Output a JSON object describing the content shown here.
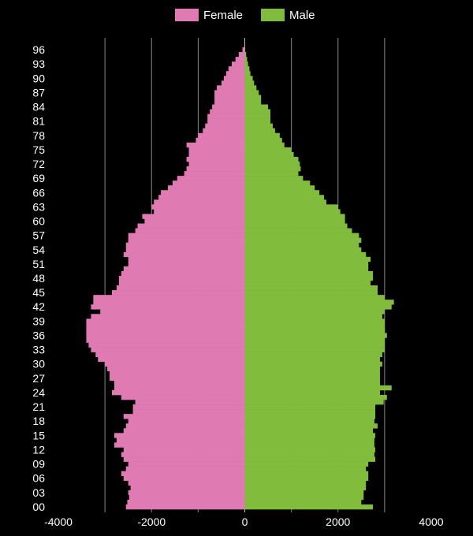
{
  "chart_data": {
    "type": "bar",
    "orientation": "horizontal",
    "layout": "population-pyramid",
    "legend_position": "top",
    "grid": true,
    "xlim": [
      -4000,
      4000
    ],
    "x_ticks": [
      -4000,
      -2000,
      0,
      2000,
      4000
    ],
    "y_tick_labels": [
      "96",
      "93",
      "90",
      "87",
      "84",
      "81",
      "78",
      "75",
      "72",
      "69",
      "66",
      "63",
      "60",
      "57",
      "54",
      "51",
      "48",
      "45",
      "42",
      "39",
      "36",
      "33",
      "30",
      "27",
      "24",
      "21",
      "18",
      "15",
      "12",
      "09",
      "06",
      "03",
      "00"
    ],
    "ages": [
      0,
      1,
      2,
      3,
      4,
      5,
      6,
      7,
      8,
      9,
      10,
      11,
      12,
      13,
      14,
      15,
      16,
      17,
      18,
      19,
      20,
      21,
      22,
      23,
      24,
      25,
      26,
      27,
      28,
      29,
      30,
      31,
      32,
      33,
      34,
      35,
      36,
      37,
      38,
      39,
      40,
      41,
      42,
      43,
      44,
      45,
      46,
      47,
      48,
      49,
      50,
      51,
      52,
      53,
      54,
      55,
      56,
      57,
      58,
      59,
      60,
      61,
      62,
      63,
      64,
      65,
      66,
      67,
      68,
      69,
      70,
      71,
      72,
      73,
      74,
      75,
      76,
      77,
      78,
      79,
      80,
      81,
      82,
      83,
      84,
      85,
      86,
      87,
      88,
      89,
      90,
      91,
      92,
      93,
      94,
      95,
      96
    ],
    "series": [
      {
        "name": "Female",
        "color": "#e07ab3",
        "values": [
          2550,
          2520,
          2480,
          2500,
          2450,
          2500,
          2600,
          2650,
          2550,
          2500,
          2600,
          2650,
          2600,
          2800,
          2750,
          2800,
          2600,
          2550,
          2500,
          2600,
          2400,
          2400,
          2350,
          2650,
          2850,
          2800,
          2800,
          2900,
          2900,
          2950,
          3000,
          3150,
          3200,
          3300,
          3350,
          3400,
          3400,
          3400,
          3400,
          3400,
          3300,
          3100,
          3300,
          3250,
          3250,
          2850,
          2750,
          2700,
          2700,
          2650,
          2600,
          2500,
          2500,
          2600,
          2550,
          2550,
          2500,
          2500,
          2350,
          2300,
          2150,
          2200,
          1950,
          2000,
          1950,
          1850,
          1800,
          1650,
          1550,
          1450,
          1300,
          1250,
          1200,
          1250,
          1200,
          1200,
          1250,
          1050,
          1000,
          900,
          850,
          800,
          800,
          750,
          700,
          650,
          650,
          650,
          600,
          500,
          450,
          400,
          350,
          280,
          200,
          130,
          50
        ]
      },
      {
        "name": "Male",
        "color": "#82bc3c",
        "values": [
          2750,
          2500,
          2550,
          2550,
          2600,
          2600,
          2650,
          2650,
          2600,
          2650,
          2800,
          2780,
          2800,
          2780,
          2780,
          2800,
          2750,
          2850,
          2780,
          2800,
          2800,
          2800,
          2980,
          3050,
          2900,
          3150,
          2900,
          2900,
          2900,
          2900,
          2950,
          2900,
          2950,
          3000,
          3000,
          3000,
          3050,
          3000,
          3000,
          3000,
          2950,
          3000,
          3150,
          3200,
          3000,
          2850,
          2850,
          2700,
          2750,
          2750,
          2650,
          2650,
          2700,
          2600,
          2500,
          2450,
          2500,
          2450,
          2300,
          2200,
          2150,
          2150,
          2050,
          2000,
          1750,
          1700,
          1600,
          1500,
          1400,
          1250,
          1150,
          1200,
          1180,
          1150,
          1050,
          1000,
          850,
          800,
          750,
          650,
          600,
          550,
          550,
          550,
          500,
          350,
          350,
          300,
          250,
          200,
          170,
          120,
          100,
          70,
          50,
          30,
          10
        ]
      }
    ]
  }
}
